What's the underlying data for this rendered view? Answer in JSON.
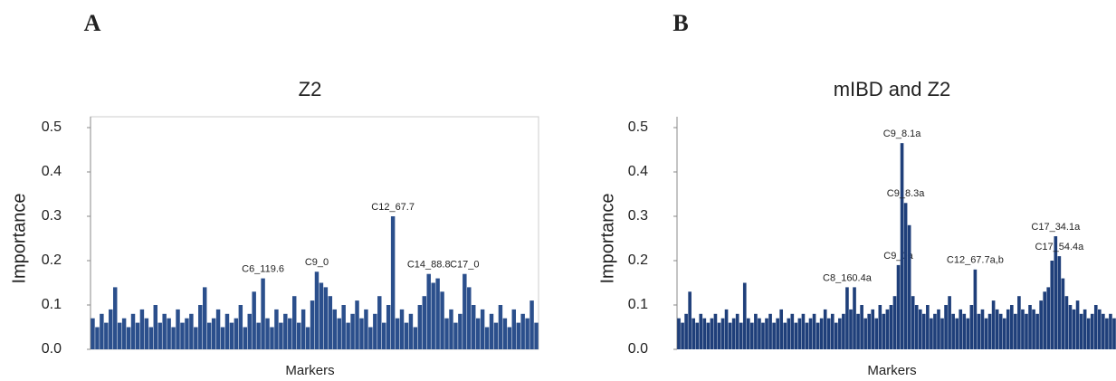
{
  "chart_data": [
    {
      "type": "bar",
      "panel": "A",
      "title": "Z2",
      "x_label": "Markers",
      "y_label": "Importance",
      "color": "#2b4f8c",
      "ylim": [
        0,
        0.5
      ],
      "yticks": [
        {
          "value": 0,
          "label": "0.0"
        },
        0.1,
        0.2,
        0.3,
        0.4,
        0.5
      ],
      "categories": [
        null,
        null,
        null,
        null,
        null,
        null,
        null,
        null,
        null,
        null,
        null,
        null,
        null,
        null,
        null,
        null,
        null,
        null,
        null,
        null,
        null,
        null,
        null,
        null,
        null,
        null,
        null,
        null,
        null,
        null,
        null,
        null,
        null,
        null,
        null,
        null,
        null,
        null,
        "C6_119.6",
        null,
        null,
        null,
        null,
        null,
        null,
        null,
        null,
        null,
        null,
        null,
        "C9_0",
        null,
        null,
        null,
        null,
        null,
        null,
        null,
        null,
        null,
        null,
        null,
        null,
        null,
        null,
        null,
        null,
        "C12_67.7",
        null,
        null,
        null,
        null,
        null,
        null,
        null,
        "C14_88.8",
        null,
        null,
        null,
        null,
        null,
        null,
        null,
        "C17_0",
        null,
        null,
        null,
        null,
        null,
        null,
        null,
        null,
        null,
        null,
        null,
        null,
        null,
        null,
        null,
        null
      ],
      "values": [
        0.07,
        0.05,
        0.08,
        0.06,
        0.09,
        0.14,
        0.06,
        0.07,
        0.05,
        0.08,
        0.06,
        0.09,
        0.07,
        0.05,
        0.1,
        0.06,
        0.08,
        0.07,
        0.05,
        0.09,
        0.06,
        0.07,
        0.08,
        0.05,
        0.1,
        0.14,
        0.06,
        0.07,
        0.09,
        0.05,
        0.08,
        0.06,
        0.07,
        0.1,
        0.05,
        0.08,
        0.13,
        0.06,
        0.16,
        0.07,
        0.05,
        0.09,
        0.06,
        0.08,
        0.07,
        0.12,
        0.06,
        0.09,
        0.05,
        0.11,
        0.175,
        0.15,
        0.14,
        0.12,
        0.09,
        0.07,
        0.1,
        0.06,
        0.08,
        0.11,
        0.07,
        0.09,
        0.05,
        0.08,
        0.12,
        0.06,
        0.1,
        0.3,
        0.07,
        0.09,
        0.06,
        0.08,
        0.05,
        0.1,
        0.12,
        0.17,
        0.15,
        0.16,
        0.13,
        0.07,
        0.09,
        0.06,
        0.08,
        0.17,
        0.14,
        0.1,
        0.07,
        0.09,
        0.05,
        0.08,
        0.06,
        0.1,
        0.07,
        0.05,
        0.09,
        0.06,
        0.08,
        0.07,
        0.11,
        0.06
      ]
    },
    {
      "type": "bar",
      "panel": "B",
      "title": "mIBD and Z2",
      "x_label": "Markers",
      "y_label": "Importance",
      "color": "#1f3f7a",
      "ylim": [
        0,
        0.5
      ],
      "yticks": [
        {
          "value": 0,
          "label": "0.0"
        },
        0.1,
        0.2,
        0.3,
        0.4,
        0.5
      ],
      "categories": [
        null,
        null,
        null,
        null,
        null,
        null,
        null,
        null,
        null,
        null,
        null,
        null,
        null,
        null,
        null,
        null,
        null,
        null,
        null,
        null,
        null,
        null,
        null,
        null,
        null,
        null,
        null,
        null,
        null,
        null,
        null,
        null,
        null,
        null,
        null,
        null,
        null,
        null,
        null,
        null,
        null,
        null,
        null,
        null,
        null,
        null,
        "C8_160.4a",
        null,
        null,
        null,
        null,
        null,
        null,
        null,
        null,
        null,
        null,
        null,
        null,
        null,
        "C9_0a",
        "C9_8.1a",
        "C9_8.3a",
        null,
        null,
        null,
        null,
        null,
        null,
        null,
        null,
        null,
        null,
        null,
        null,
        null,
        null,
        null,
        null,
        null,
        null,
        "C12_67.7a,b",
        null,
        null,
        null,
        null,
        null,
        null,
        null,
        null,
        null,
        null,
        null,
        null,
        null,
        null,
        null,
        null,
        null,
        null,
        null,
        null,
        null,
        "C17_34.1a",
        "C17_54.4a",
        null,
        null,
        null,
        null,
        null,
        null,
        null,
        null,
        null,
        null,
        null,
        null,
        null,
        null,
        null
      ],
      "values": [
        0.07,
        0.06,
        0.08,
        0.13,
        0.07,
        0.06,
        0.08,
        0.07,
        0.06,
        0.07,
        0.08,
        0.06,
        0.07,
        0.09,
        0.06,
        0.07,
        0.08,
        0.06,
        0.15,
        0.07,
        0.06,
        0.08,
        0.07,
        0.06,
        0.07,
        0.08,
        0.06,
        0.07,
        0.09,
        0.06,
        0.07,
        0.08,
        0.06,
        0.07,
        0.08,
        0.06,
        0.07,
        0.08,
        0.06,
        0.07,
        0.09,
        0.07,
        0.08,
        0.06,
        0.07,
        0.08,
        0.14,
        0.09,
        0.14,
        0.08,
        0.1,
        0.07,
        0.08,
        0.09,
        0.07,
        0.1,
        0.08,
        0.09,
        0.1,
        0.12,
        0.19,
        0.465,
        0.33,
        0.28,
        0.12,
        0.1,
        0.09,
        0.08,
        0.1,
        0.07,
        0.08,
        0.09,
        0.07,
        0.1,
        0.12,
        0.08,
        0.07,
        0.09,
        0.08,
        0.07,
        0.1,
        0.18,
        0.08,
        0.09,
        0.07,
        0.08,
        0.11,
        0.09,
        0.08,
        0.07,
        0.09,
        0.1,
        0.08,
        0.12,
        0.09,
        0.08,
        0.1,
        0.09,
        0.08,
        0.11,
        0.13,
        0.14,
        0.2,
        0.255,
        0.21,
        0.16,
        0.12,
        0.1,
        0.09,
        0.11,
        0.08,
        0.09,
        0.07,
        0.08,
        0.1,
        0.09,
        0.08,
        0.07,
        0.08,
        0.07
      ]
    }
  ]
}
